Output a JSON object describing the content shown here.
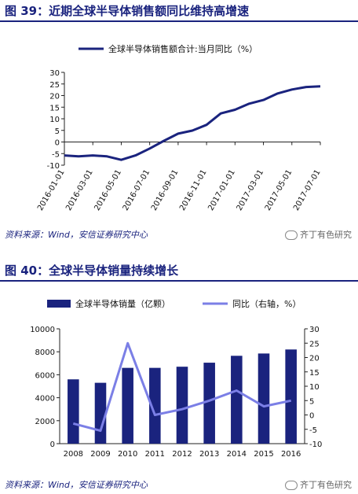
{
  "figure1": {
    "title": "图 39：近期全球半导体销售额同比维持高增速",
    "source": "资料来源：Wind，安信证券研究中心",
    "watermark": "齐丁有色研究"
  },
  "figure2": {
    "title": "图 40：全球半导体销量持续增长",
    "source": "资料来源：Wind，安信证券研究中心",
    "watermark": "齐丁有色研究"
  },
  "chart_data": [
    {
      "type": "line",
      "title": "",
      "legend": [
        "全球半导体销售额合计:当月同比（%）"
      ],
      "legend_position": "top",
      "x": [
        "2016-01",
        "2016-02",
        "2016-03",
        "2016-04",
        "2016-05",
        "2016-06",
        "2016-07",
        "2016-08",
        "2016-09",
        "2016-10",
        "2016-11",
        "2016-12",
        "2017-01",
        "2017-02",
        "2017-03",
        "2017-04",
        "2017-05",
        "2017-06",
        "2017-07"
      ],
      "x_tick_labels": [
        "2016-01-01",
        "2016-03-01",
        "2016-05-01",
        "2016-07-01",
        "2016-09-01",
        "2016-11-01",
        "2017-01-01",
        "2017-03-01",
        "2017-05-01",
        "2017-07-01"
      ],
      "series": [
        {
          "name": "全球半导体销售额合计:当月同比（%）",
          "color": "#1a237e",
          "values": [
            -5.8,
            -6.2,
            -5.8,
            -6.2,
            -7.7,
            -5.8,
            -2.8,
            0.5,
            3.6,
            4.9,
            7.4,
            12.3,
            13.9,
            16.5,
            18.1,
            20.9,
            22.6,
            23.7,
            24.0
          ]
        }
      ],
      "ylim": [
        -10,
        30
      ],
      "y_ticks": [
        -10,
        -5,
        0,
        5,
        10,
        15,
        20,
        25,
        30
      ],
      "grid": false
    },
    {
      "type": "bar",
      "title": "",
      "legend": [
        "全球半导体销量（亿颗）",
        "同比（右轴，%）"
      ],
      "legend_position": "top",
      "categories": [
        "2008",
        "2009",
        "2010",
        "2011",
        "2012",
        "2013",
        "2014",
        "2015",
        "2016"
      ],
      "series": [
        {
          "name": "全球半导体销量（亿颗）",
          "type": "bar",
          "axis": "left",
          "color": "#1a237e",
          "values": [
            5600,
            5300,
            6600,
            6600,
            6700,
            7050,
            7650,
            7850,
            8200
          ]
        },
        {
          "name": "同比（右轴，%）",
          "type": "line",
          "axis": "right",
          "color": "#7b7fe6",
          "values": [
            -3,
            -5.5,
            25,
            0,
            2,
            5,
            8.5,
            3,
            5
          ]
        }
      ],
      "ylim_left": [
        0,
        10000
      ],
      "y_ticks_left": [
        0,
        2000,
        4000,
        6000,
        8000,
        10000
      ],
      "ylim_right": [
        -10,
        30
      ],
      "y_ticks_right": [
        -10,
        -5,
        0,
        5,
        10,
        15,
        20,
        25,
        30
      ],
      "grid": false
    }
  ]
}
